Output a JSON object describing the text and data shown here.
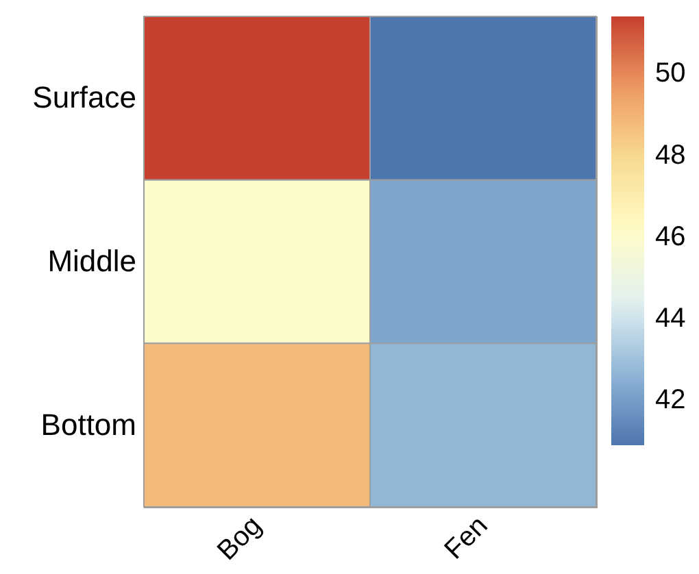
{
  "chart_data": {
    "type": "heatmap",
    "categories": [
      "Bog",
      "Fen"
    ],
    "y_categories": [
      "Surface",
      "Middle",
      "Bottom"
    ],
    "cells": [
      [
        51.4,
        40.9
      ],
      [
        46.0,
        42.2
      ],
      [
        48.8,
        42.7
      ]
    ],
    "clim": [
      40.9,
      51.4
    ],
    "cticks": [
      42,
      44,
      46,
      48,
      50
    ]
  }
}
